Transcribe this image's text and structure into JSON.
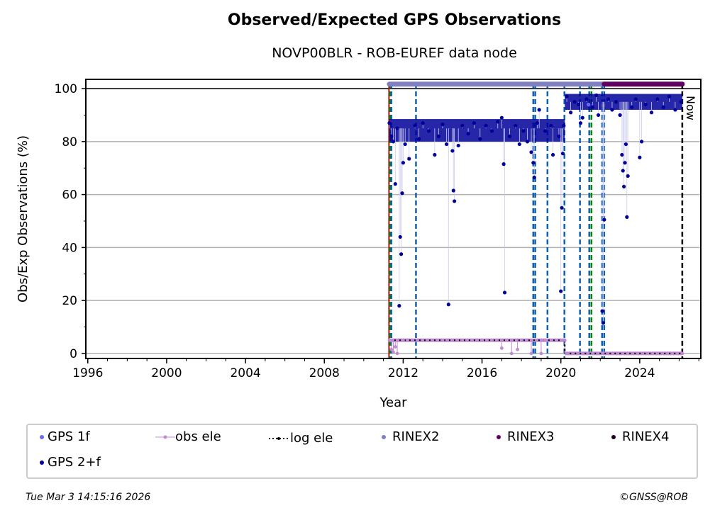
{
  "chart_data": {
    "type": "scatter",
    "title": "Observed/Expected GPS Observations",
    "subtitle": "NOVP00BLR - ROB-EUREF data node",
    "xlabel": "Year",
    "ylabel": "Obs/Exp Observations (%)",
    "xlim": [
      1995.9,
      2027.1
    ],
    "ylim": [
      -1.9,
      103.5
    ],
    "xticks": [
      1996,
      2000,
      2004,
      2008,
      2012,
      2016,
      2020,
      2024
    ],
    "yticks": [
      0,
      20,
      40,
      60,
      80,
      100
    ],
    "grid": "horizontal",
    "now_label": "Now",
    "now_year": 2026.16,
    "series": [
      {
        "name": "GPS 2+f",
        "color": "#000099",
        "points": [
          [
            2011.3,
            87
          ],
          [
            2011.4,
            82
          ],
          [
            2011.5,
            80
          ],
          [
            2011.6,
            64
          ],
          [
            2011.7,
            85
          ],
          [
            2011.8,
            18
          ],
          [
            2011.85,
            44
          ],
          [
            2011.9,
            37.5
          ],
          [
            2011.95,
            60.5
          ],
          [
            2012.0,
            72
          ],
          [
            2012.1,
            79
          ],
          [
            2012.3,
            73.5
          ],
          [
            2012.6,
            86
          ],
          [
            2012.8,
            81
          ],
          [
            2013.0,
            87
          ],
          [
            2013.3,
            84
          ],
          [
            2013.6,
            75
          ],
          [
            2013.8,
            82
          ],
          [
            2014.0,
            86.5
          ],
          [
            2014.2,
            79
          ],
          [
            2014.3,
            18.5
          ],
          [
            2014.5,
            76.5
          ],
          [
            2014.55,
            61.5
          ],
          [
            2014.6,
            57.5
          ],
          [
            2014.8,
            78.5
          ],
          [
            2015.0,
            86
          ],
          [
            2015.3,
            83
          ],
          [
            2015.6,
            87
          ],
          [
            2015.9,
            81
          ],
          [
            2016.2,
            86
          ],
          [
            2016.5,
            84
          ],
          [
            2016.8,
            87.5
          ],
          [
            2017.0,
            89
          ],
          [
            2017.1,
            71.5
          ],
          [
            2017.15,
            23
          ],
          [
            2017.4,
            82
          ],
          [
            2017.7,
            86
          ],
          [
            2017.9,
            79
          ],
          [
            2018.1,
            84
          ],
          [
            2018.3,
            80
          ],
          [
            2018.5,
            76
          ],
          [
            2018.6,
            72
          ],
          [
            2018.65,
            66.5
          ],
          [
            2018.8,
            87
          ],
          [
            2018.9,
            92
          ],
          [
            2019.2,
            84
          ],
          [
            2019.5,
            86
          ],
          [
            2019.6,
            75
          ],
          [
            2019.9,
            82
          ],
          [
            2020.0,
            23.5
          ],
          [
            2020.05,
            55
          ],
          [
            2020.1,
            75.5
          ],
          [
            2020.15,
            86
          ],
          [
            2020.3,
            97
          ],
          [
            2020.5,
            91
          ],
          [
            2020.7,
            95
          ],
          [
            2020.9,
            94
          ],
          [
            2021.0,
            87
          ],
          [
            2021.1,
            89
          ],
          [
            2021.3,
            96
          ],
          [
            2021.6,
            93
          ],
          [
            2021.8,
            97.5
          ],
          [
            2021.9,
            90
          ],
          [
            2022.1,
            16
          ],
          [
            2022.15,
            11.5
          ],
          [
            2022.2,
            50.5
          ],
          [
            2022.4,
            96
          ],
          [
            2022.6,
            92
          ],
          [
            2022.8,
            95
          ],
          [
            2023.0,
            90
          ],
          [
            2023.1,
            75
          ],
          [
            2023.15,
            69
          ],
          [
            2023.2,
            63
          ],
          [
            2023.25,
            72
          ],
          [
            2023.3,
            79
          ],
          [
            2023.35,
            51.5
          ],
          [
            2023.4,
            67
          ],
          [
            2023.6,
            93
          ],
          [
            2023.8,
            96
          ],
          [
            2024.0,
            74
          ],
          [
            2024.1,
            80
          ],
          [
            2024.3,
            94
          ],
          [
            2024.6,
            91
          ],
          [
            2024.9,
            96
          ],
          [
            2025.2,
            93
          ],
          [
            2025.5,
            97
          ],
          [
            2025.8,
            92
          ],
          [
            2026.1,
            95
          ]
        ]
      },
      {
        "name": "GPS 1f",
        "color": "#6b6bf0",
        "points": [
          [
            2021.4,
            94
          ]
        ]
      },
      {
        "name": "obs ele",
        "color": "#c08bd0",
        "points": [
          [
            2011.3,
            5
          ],
          [
            2011.4,
            1.5
          ],
          [
            2011.5,
            0.5
          ],
          [
            2011.6,
            2.5
          ],
          [
            2011.7,
            0
          ],
          [
            2012.0,
            5
          ],
          [
            2014.0,
            5
          ],
          [
            2016.0,
            5
          ],
          [
            2017.0,
            2
          ],
          [
            2017.5,
            0
          ],
          [
            2017.8,
            1.5
          ],
          [
            2018.0,
            5
          ],
          [
            2018.5,
            0
          ],
          [
            2019.0,
            0
          ],
          [
            2019.2,
            5
          ],
          [
            2020.2,
            5
          ],
          [
            2020.3,
            0
          ],
          [
            2026.16,
            0
          ]
        ]
      },
      {
        "name": "log ele",
        "color": "#000000",
        "segments": [
          [
            2011.3,
            2020.2,
            5
          ],
          [
            2020.2,
            2026.16,
            0
          ]
        ]
      },
      {
        "name": "RINEX2",
        "color": "#8080c0",
        "span": [
          2011.3,
          2022.2
        ],
        "level": 101.7
      },
      {
        "name": "RINEX3",
        "color": "#600060",
        "span": [
          2022.2,
          2026.16
        ],
        "level": 101.7
      },
      {
        "name": "RINEX4",
        "color": "#200020"
      }
    ],
    "event_lines": [
      {
        "year": 2011.28,
        "color": "#dd0000",
        "style": "solid"
      },
      {
        "year": 2011.33,
        "color": "#008800",
        "style": "dashed"
      },
      {
        "year": 2011.4,
        "color": "#1060b0",
        "style": "dashed"
      },
      {
        "year": 2012.65,
        "color": "#1060b0",
        "style": "dashed"
      },
      {
        "year": 2018.6,
        "color": "#1060b0",
        "style": "dashed"
      },
      {
        "year": 2018.7,
        "color": "#1060b0",
        "style": "dashed"
      },
      {
        "year": 2019.32,
        "color": "#1060b0",
        "style": "dashed"
      },
      {
        "year": 2020.18,
        "color": "#1060b0",
        "style": "dashed"
      },
      {
        "year": 2020.97,
        "color": "#1060b0",
        "style": "dashed"
      },
      {
        "year": 2021.44,
        "color": "#1060b0",
        "style": "dashed"
      },
      {
        "year": 2021.55,
        "color": "#008800",
        "style": "dashed"
      },
      {
        "year": 2022.09,
        "color": "#1060b0",
        "style": "dashed"
      },
      {
        "year": 2022.2,
        "color": "#1060b0",
        "style": "dashed"
      },
      {
        "year": 2026.16,
        "color": "#000000",
        "style": "dashed"
      }
    ]
  },
  "legend": [
    "GPS 1f",
    "obs ele",
    "log ele",
    "RINEX2",
    "RINEX3",
    "RINEX4",
    "GPS 2+f"
  ],
  "footer": {
    "timestamp": "Tue Mar  3 14:15:16 2026",
    "copyright": "©GNSS@ROB"
  }
}
